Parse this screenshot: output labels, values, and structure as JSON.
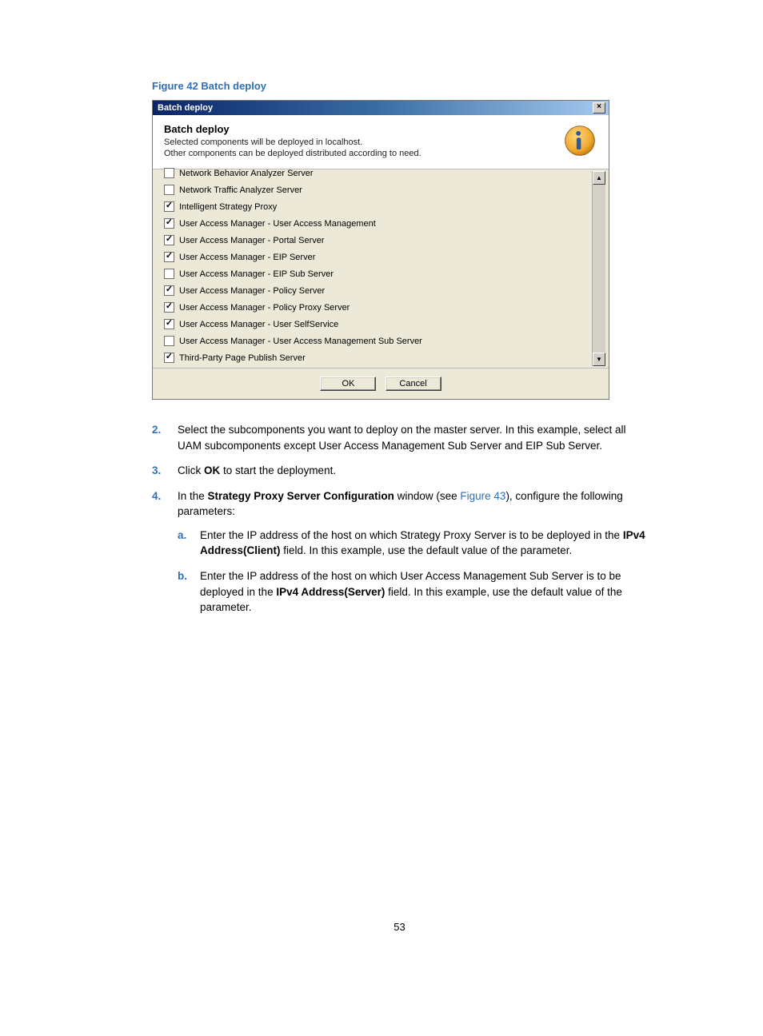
{
  "figure_caption": "Figure 42 Batch deploy",
  "dialog": {
    "title": "Batch deploy",
    "close_glyph": "×",
    "header_title": "Batch deploy",
    "header_line1": "Selected components will be deployed in localhost.",
    "header_line2": "Other components can be deployed distributed according to need.",
    "items": [
      {
        "label": "Network Behavior Analyzer Server",
        "checked": false,
        "clipped": true
      },
      {
        "label": "Network Traffic Analyzer Server",
        "checked": false
      },
      {
        "label": "Intelligent Strategy Proxy",
        "checked": true
      },
      {
        "label": "User Access Manager - User Access Management",
        "checked": true
      },
      {
        "label": "User Access Manager - Portal Server",
        "checked": true
      },
      {
        "label": "User Access Manager - EIP Server",
        "checked": true
      },
      {
        "label": "User Access Manager - EIP Sub Server",
        "checked": false
      },
      {
        "label": "User Access Manager - Policy Server",
        "checked": true
      },
      {
        "label": "User Access Manager - Policy Proxy Server",
        "checked": true
      },
      {
        "label": "User Access Manager - User SelfService",
        "checked": true
      },
      {
        "label": "User Access Manager - User Access Management Sub Server",
        "checked": false
      },
      {
        "label": "Third-Party Page Publish Server",
        "checked": true
      }
    ],
    "ok_label": "OK",
    "cancel_label": "Cancel",
    "scroll_up": "▲",
    "scroll_down": "▼"
  },
  "steps": {
    "s2": {
      "num": "2.",
      "text_a": "Select the subcomponents you want to deploy on the master server. In this example, select all UAM subcomponents except User Access Management Sub Server and EIP Sub Server."
    },
    "s3": {
      "num": "3.",
      "prefix": "Click ",
      "bold": "OK",
      "suffix": " to start the deployment."
    },
    "s4": {
      "num": "4.",
      "prefix": "In the ",
      "bold": "Strategy Proxy Server Configuration",
      "mid": " window (see ",
      "figref": "Figure 43",
      "suffix": "), configure the following parameters:",
      "a": {
        "num": "a.",
        "p1": "Enter the IP address of the host on which Strategy Proxy Server is to be deployed in the ",
        "b1": "IPv4 Address(Client)",
        "p2": " field. In this example, use the default value of the parameter."
      },
      "b": {
        "num": "b.",
        "p1": "Enter the IP address of the host on which User Access Management Sub Server is to be deployed in the ",
        "b1": "IPv4 Address(Server)",
        "p2": " field. In this example, use the default value of the parameter."
      }
    }
  },
  "page_number": "53"
}
